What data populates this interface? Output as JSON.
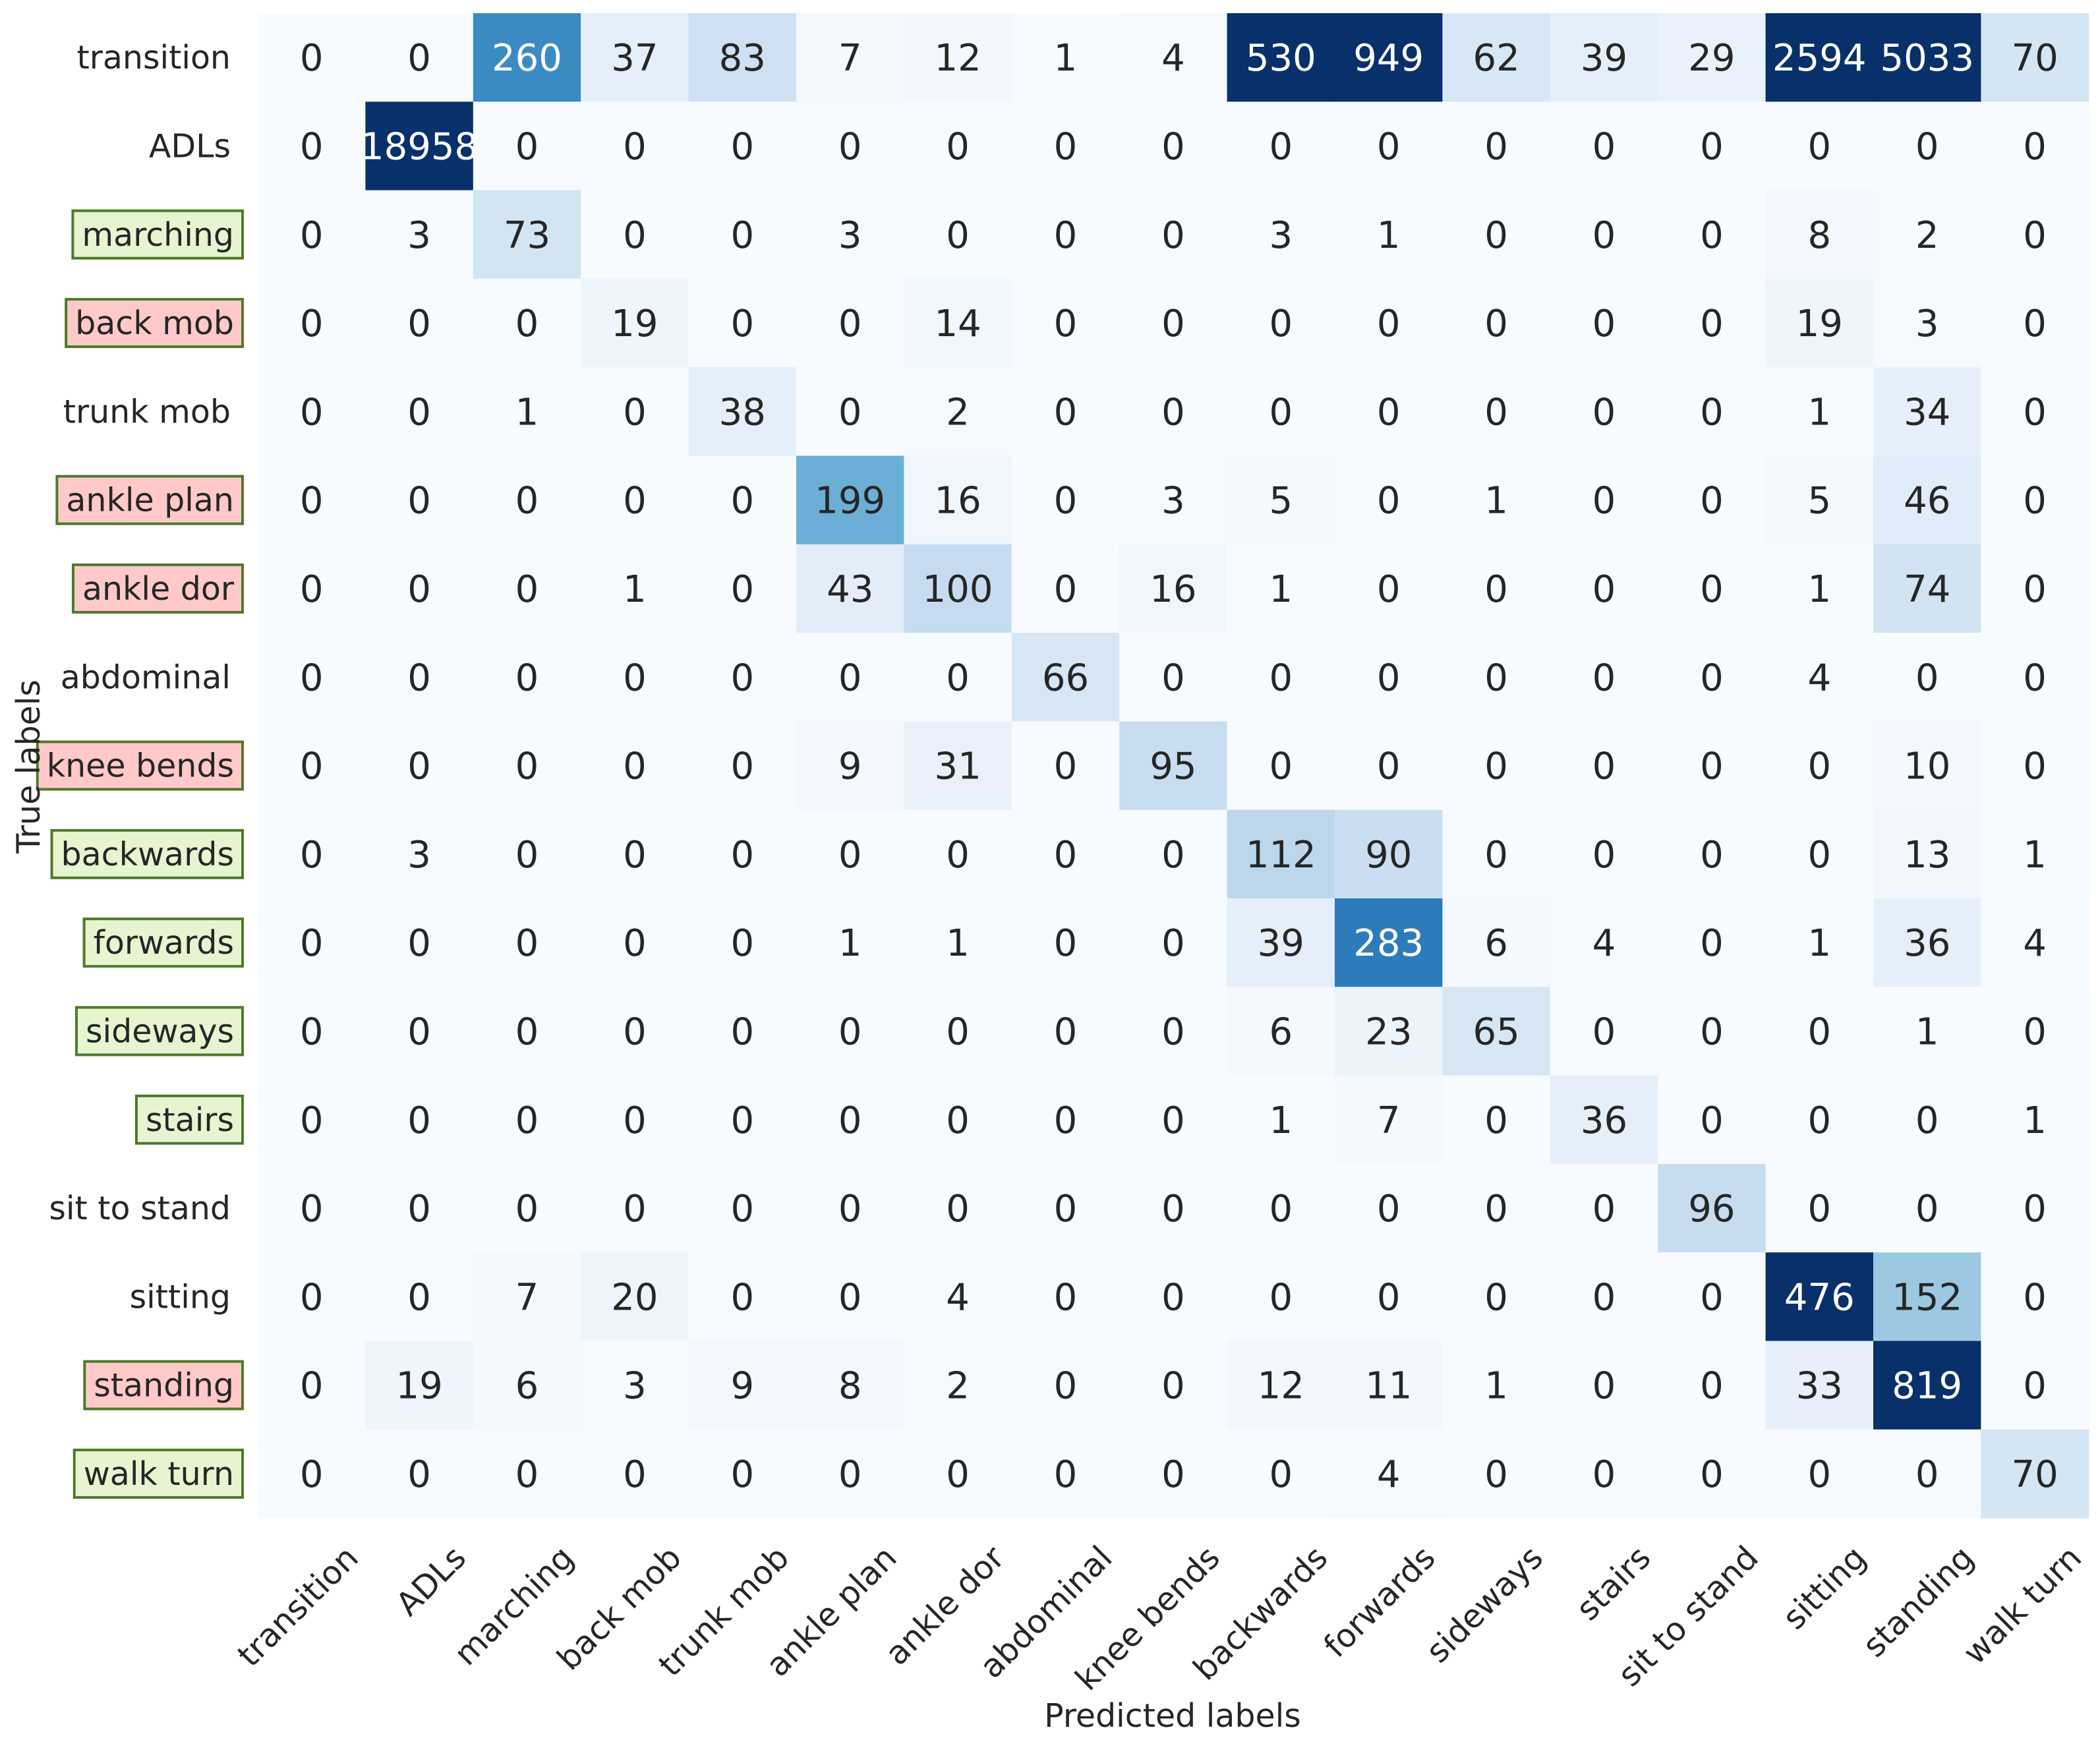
{
  "chart_data": {
    "type": "heatmap",
    "title": "",
    "xlabel": "Predicted labels",
    "ylabel": "True labels",
    "x_categories": [
      "transition",
      "ADLs",
      "marching",
      "back mob",
      "trunk mob",
      "ankle plan",
      "ankle dor",
      "abdominal",
      "knee bends",
      "backwards",
      "forwards",
      "sideways",
      "stairs",
      "sit to stand",
      "sitting",
      "standing",
      "walk turn"
    ],
    "y_categories": [
      "transition",
      "ADLs",
      "marching",
      "back mob",
      "trunk mob",
      "ankle plan",
      "ankle dor",
      "abdominal",
      "knee bends",
      "backwards",
      "forwards",
      "sideways",
      "stairs",
      "sit to stand",
      "sitting",
      "standing",
      "walk turn"
    ],
    "values": [
      [
        0,
        0,
        260,
        37,
        83,
        7,
        12,
        1,
        4,
        530,
        949,
        62,
        39,
        29,
        2594,
        5033,
        70
      ],
      [
        0,
        18958,
        0,
        0,
        0,
        0,
        0,
        0,
        0,
        0,
        0,
        0,
        0,
        0,
        0,
        0,
        0
      ],
      [
        0,
        3,
        73,
        0,
        0,
        3,
        0,
        0,
        0,
        3,
        1,
        0,
        0,
        0,
        8,
        2,
        0
      ],
      [
        0,
        0,
        0,
        19,
        0,
        0,
        14,
        0,
        0,
        0,
        0,
        0,
        0,
        0,
        19,
        3,
        0
      ],
      [
        0,
        0,
        1,
        0,
        38,
        0,
        2,
        0,
        0,
        0,
        0,
        0,
        0,
        0,
        1,
        34,
        0
      ],
      [
        0,
        0,
        0,
        0,
        0,
        199,
        16,
        0,
        3,
        5,
        0,
        1,
        0,
        0,
        5,
        46,
        0
      ],
      [
        0,
        0,
        0,
        1,
        0,
        43,
        100,
        0,
        16,
        1,
        0,
        0,
        0,
        0,
        1,
        74,
        0
      ],
      [
        0,
        0,
        0,
        0,
        0,
        0,
        0,
        66,
        0,
        0,
        0,
        0,
        0,
        0,
        4,
        0,
        0
      ],
      [
        0,
        0,
        0,
        0,
        0,
        9,
        31,
        0,
        95,
        0,
        0,
        0,
        0,
        0,
        0,
        10,
        0
      ],
      [
        0,
        3,
        0,
        0,
        0,
        0,
        0,
        0,
        0,
        112,
        90,
        0,
        0,
        0,
        0,
        13,
        1
      ],
      [
        0,
        0,
        0,
        0,
        0,
        1,
        1,
        0,
        0,
        39,
        283,
        6,
        4,
        0,
        1,
        36,
        4
      ],
      [
        0,
        0,
        0,
        0,
        0,
        0,
        0,
        0,
        0,
        6,
        23,
        65,
        0,
        0,
        0,
        1,
        0
      ],
      [
        0,
        0,
        0,
        0,
        0,
        0,
        0,
        0,
        0,
        1,
        7,
        0,
        36,
        0,
        0,
        0,
        1
      ],
      [
        0,
        0,
        0,
        0,
        0,
        0,
        0,
        0,
        0,
        0,
        0,
        0,
        0,
        96,
        0,
        0,
        0
      ],
      [
        0,
        0,
        7,
        20,
        0,
        0,
        4,
        0,
        0,
        0,
        0,
        0,
        0,
        0,
        476,
        152,
        0
      ],
      [
        0,
        19,
        6,
        3,
        9,
        8,
        2,
        0,
        0,
        12,
        11,
        1,
        0,
        0,
        33,
        819,
        0
      ],
      [
        0,
        0,
        0,
        0,
        0,
        0,
        0,
        0,
        0,
        0,
        4,
        0,
        0,
        0,
        0,
        0,
        70
      ]
    ],
    "color_scale": "Blues",
    "color_vmin": 0,
    "color_vmax": 400,
    "colorbar": false,
    "row_label_highlights": [
      "none",
      "none",
      "green",
      "red",
      "none",
      "red",
      "red",
      "none",
      "red",
      "green",
      "green",
      "green",
      "green",
      "none",
      "none",
      "red",
      "green"
    ],
    "highlight_colors": {
      "green": "#e6f5d0",
      "red": "#ffc9c9",
      "border": "#4e7a2a"
    },
    "text_colors": {
      "dark": "#262626",
      "light": "#ffffff"
    }
  }
}
